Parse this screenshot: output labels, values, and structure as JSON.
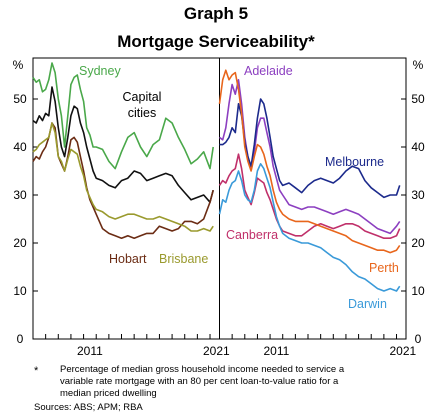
{
  "graph_label": "Graph 5",
  "graph_title": "Mortgage Serviceability*",
  "footnote_mark": "*",
  "footnote": "Percentage of median gross household income needed to service a variable rate mortgage with an 80 per cent loan-to-value ratio for a median priced dwelling",
  "sources": "Sources:   ABS; APM; RBA",
  "chart_data": [
    {
      "type": "line",
      "y_unit": "%",
      "ylim": [
        0,
        60
      ],
      "yticks": [
        0,
        10,
        20,
        30,
        40,
        50
      ],
      "xlim": [
        2007.0,
        2021.75
      ],
      "xticks": [
        "2011",
        "2021"
      ],
      "grid": false,
      "colors": {
        "Sydney": "#4aa84a",
        "Capital cities": "#111111",
        "Hobart": "#6b2c14",
        "Brisbane": "#9a9a2e"
      },
      "series": [
        {
          "name": "Sydney",
          "color": "#4aa84a",
          "x": [
            2007.0,
            2007.25,
            2007.5,
            2007.75,
            2008.0,
            2008.25,
            2008.5,
            2008.75,
            2009.0,
            2009.25,
            2009.5,
            2009.75,
            2010.0,
            2010.25,
            2010.5,
            2010.75,
            2011.0,
            2011.25,
            2011.5,
            2011.75,
            2012.0,
            2012.5,
            2013.0,
            2013.5,
            2014.0,
            2014.5,
            2015.0,
            2015.5,
            2016.0,
            2016.5,
            2017.0,
            2017.5,
            2018.0,
            2018.5,
            2019.0,
            2019.5,
            2020.0,
            2020.5,
            2021.0,
            2021.25
          ],
          "y": [
            54.5,
            53.5,
            54,
            51.5,
            52,
            54,
            57.5,
            55.5,
            50,
            46.5,
            40,
            46.5,
            53,
            54.5,
            55,
            52,
            49.5,
            44,
            42.5,
            40,
            40,
            39.5,
            37,
            35.5,
            39,
            42,
            43,
            40,
            38,
            40.5,
            41.5,
            46,
            45,
            42,
            39.5,
            36.5,
            37.5,
            39,
            35.5,
            40
          ]
        },
        {
          "name": "Capital cities",
          "color": "#111111",
          "x": [
            2007.0,
            2007.25,
            2007.5,
            2007.75,
            2008.0,
            2008.25,
            2008.5,
            2008.75,
            2009.0,
            2009.25,
            2009.5,
            2009.75,
            2010.0,
            2010.25,
            2010.5,
            2010.75,
            2011.0,
            2011.25,
            2011.5,
            2011.75,
            2012.0,
            2012.5,
            2013.0,
            2013.5,
            2014.0,
            2014.5,
            2015.0,
            2015.5,
            2016.0,
            2016.5,
            2017.0,
            2017.5,
            2018.0,
            2018.5,
            2019.0,
            2019.5,
            2020.0,
            2020.5,
            2021.0,
            2021.25
          ],
          "y": [
            45.5,
            45,
            46.5,
            45.5,
            47,
            46.5,
            52.5,
            49.5,
            44,
            40,
            38,
            42,
            46.5,
            48.5,
            48,
            45,
            43,
            40,
            37.5,
            35,
            33.5,
            33,
            32,
            31.5,
            33,
            33.5,
            35,
            34.5,
            33,
            33.5,
            34,
            34.5,
            34,
            32,
            30.5,
            29,
            29.5,
            30,
            28.5,
            31
          ]
        },
        {
          "name": "Hobart",
          "color": "#6b2c14",
          "x": [
            2007.0,
            2007.25,
            2007.5,
            2007.75,
            2008.0,
            2008.25,
            2008.5,
            2008.75,
            2009.0,
            2009.25,
            2009.5,
            2009.75,
            2010.0,
            2010.25,
            2010.5,
            2010.75,
            2011.0,
            2011.25,
            2011.5,
            2011.75,
            2012.0,
            2012.5,
            2013.0,
            2013.5,
            2014.0,
            2014.5,
            2015.0,
            2015.5,
            2016.0,
            2016.5,
            2017.0,
            2017.5,
            2018.0,
            2018.5,
            2019.0,
            2019.5,
            2020.0,
            2020.5,
            2021.0,
            2021.25
          ],
          "y": [
            37,
            38,
            37.5,
            39,
            40,
            42,
            45,
            44,
            38,
            36.5,
            35,
            38,
            41.5,
            42,
            41,
            38,
            35,
            31.5,
            29,
            27.5,
            26,
            23,
            22,
            21.5,
            21,
            21.5,
            21,
            21.5,
            22,
            22,
            23.5,
            23,
            22.5,
            23,
            24.5,
            24.5,
            24,
            25,
            28.5,
            31
          ]
        },
        {
          "name": "Brisbane",
          "color": "#9a9a2e",
          "x": [
            2007.0,
            2007.25,
            2007.5,
            2007.75,
            2008.0,
            2008.25,
            2008.5,
            2008.75,
            2009.0,
            2009.25,
            2009.5,
            2009.75,
            2010.0,
            2010.25,
            2010.5,
            2010.75,
            2011.0,
            2011.25,
            2011.5,
            2011.75,
            2012.0,
            2012.5,
            2013.0,
            2013.5,
            2014.0,
            2014.5,
            2015.0,
            2015.5,
            2016.0,
            2016.5,
            2017.0,
            2017.5,
            2018.0,
            2018.5,
            2019.0,
            2019.5,
            2020.0,
            2020.5,
            2021.0,
            2021.25
          ],
          "y": [
            39,
            39.5,
            40.5,
            41,
            41.5,
            42,
            45,
            43,
            38,
            37,
            35,
            37.5,
            39.5,
            39,
            38.5,
            36,
            34,
            31,
            29.5,
            28,
            27,
            26.5,
            25.5,
            25,
            25.5,
            26,
            26,
            25.5,
            25,
            25,
            25.5,
            25,
            24.5,
            24,
            23.5,
            22.5,
            22.5,
            23,
            22.5,
            23.5
          ]
        }
      ]
    },
    {
      "type": "line",
      "y_unit": "%",
      "ylim": [
        0,
        60
      ],
      "yticks": [
        0,
        10,
        20,
        30,
        40,
        50
      ],
      "xlim": [
        2007.0,
        2021.75
      ],
      "xticks": [
        "2011",
        "2021"
      ],
      "grid": false,
      "colors": {
        "Adelaide": "#8c3fc0",
        "Melbourne": "#1c2a8c",
        "Canberra": "#c0306a",
        "Perth": "#e8661c",
        "Darwin": "#3a9ad9"
      },
      "series": [
        {
          "name": "Adelaide",
          "color": "#8c3fc0",
          "x": [
            2007.0,
            2007.25,
            2007.5,
            2007.75,
            2008.0,
            2008.25,
            2008.5,
            2008.75,
            2009.0,
            2009.25,
            2009.5,
            2009.75,
            2010.0,
            2010.25,
            2010.5,
            2010.75,
            2011.0,
            2011.25,
            2011.5,
            2011.75,
            2012.0,
            2012.5,
            2013.0,
            2013.5,
            2014.0,
            2014.5,
            2015.0,
            2015.5,
            2016.0,
            2016.5,
            2017.0,
            2017.5,
            2018.0,
            2018.5,
            2019.0,
            2019.5,
            2020.0,
            2020.5,
            2021.0,
            2021.25
          ],
          "y": [
            42,
            41.5,
            44,
            49,
            53,
            51,
            54,
            49,
            42,
            38,
            35.5,
            39,
            44,
            46,
            46,
            43,
            40,
            36,
            33.5,
            31,
            30,
            28,
            27.5,
            27,
            27.5,
            27.5,
            27,
            26.5,
            26,
            26.5,
            27,
            26.5,
            26,
            25,
            24,
            23,
            22.5,
            22,
            23.5,
            24.5
          ]
        },
        {
          "name": "Melbourne",
          "color": "#1c2a8c",
          "x": [
            2007.0,
            2007.25,
            2007.5,
            2007.75,
            2008.0,
            2008.25,
            2008.5,
            2008.75,
            2009.0,
            2009.25,
            2009.5,
            2009.75,
            2010.0,
            2010.25,
            2010.5,
            2010.75,
            2011.0,
            2011.25,
            2011.5,
            2011.75,
            2012.0,
            2012.5,
            2013.0,
            2013.5,
            2014.0,
            2014.5,
            2015.0,
            2015.5,
            2016.0,
            2016.5,
            2017.0,
            2017.5,
            2018.0,
            2018.5,
            2019.0,
            2019.5,
            2020.0,
            2020.5,
            2021.0,
            2021.25
          ],
          "y": [
            40.5,
            40.5,
            41,
            42,
            44,
            43,
            49,
            46.5,
            41,
            38,
            36,
            40.5,
            46,
            50,
            49,
            46,
            42,
            38,
            35.5,
            33,
            32,
            32.5,
            31.5,
            30.5,
            32,
            33,
            33.5,
            33,
            32.5,
            33.5,
            35,
            36,
            35.5,
            33,
            31.5,
            30.5,
            29.5,
            30,
            30,
            32
          ]
        },
        {
          "name": "Canberra",
          "color": "#c0306a",
          "x": [
            2007.0,
            2007.25,
            2007.5,
            2007.75,
            2008.0,
            2008.25,
            2008.5,
            2008.75,
            2009.0,
            2009.25,
            2009.5,
            2009.75,
            2010.0,
            2010.25,
            2010.5,
            2010.75,
            2011.0,
            2011.25,
            2011.5,
            2011.75,
            2012.0,
            2012.5,
            2013.0,
            2013.5,
            2014.0,
            2014.5,
            2015.0,
            2015.5,
            2016.0,
            2016.5,
            2017.0,
            2017.5,
            2018.0,
            2018.5,
            2019.0,
            2019.5,
            2020.0,
            2020.5,
            2021.0,
            2021.25
          ],
          "y": [
            32,
            33,
            32.5,
            34,
            35,
            35.5,
            38.5,
            35.5,
            31,
            29.5,
            28,
            30.5,
            33.5,
            33,
            32.5,
            30.5,
            29,
            27,
            25,
            23.5,
            22.5,
            22,
            21.5,
            21.5,
            22.5,
            23.5,
            24,
            23.5,
            23,
            23.5,
            24,
            24,
            23.5,
            22.5,
            22,
            21.5,
            21,
            21,
            21.5,
            23
          ]
        },
        {
          "name": "Perth",
          "color": "#e8661c",
          "x": [
            2007.0,
            2007.25,
            2007.5,
            2007.75,
            2008.0,
            2008.25,
            2008.5,
            2008.75,
            2009.0,
            2009.25,
            2009.5,
            2009.75,
            2010.0,
            2010.25,
            2010.5,
            2010.75,
            2011.0,
            2011.25,
            2011.5,
            2011.75,
            2012.0,
            2012.5,
            2013.0,
            2013.5,
            2014.0,
            2014.5,
            2015.0,
            2015.5,
            2016.0,
            2016.5,
            2017.0,
            2017.5,
            2018.0,
            2018.5,
            2019.0,
            2019.5,
            2020.0,
            2020.5,
            2021.0,
            2021.25
          ],
          "y": [
            49,
            54,
            56,
            54,
            55,
            55.5,
            52,
            47,
            40,
            37,
            35,
            38,
            40.5,
            40,
            38.5,
            36,
            34,
            31,
            28.5,
            27,
            26,
            25,
            24.5,
            24.5,
            24.5,
            24,
            23.5,
            23,
            22.5,
            22,
            21.5,
            20.5,
            20,
            19.5,
            19,
            18.5,
            18.5,
            18,
            18.5,
            19.5
          ]
        },
        {
          "name": "Darwin",
          "color": "#3a9ad9",
          "x": [
            2007.0,
            2007.25,
            2007.5,
            2007.75,
            2008.0,
            2008.25,
            2008.5,
            2008.75,
            2009.0,
            2009.25,
            2009.5,
            2009.75,
            2010.0,
            2010.25,
            2010.5,
            2010.75,
            2011.0,
            2011.25,
            2011.5,
            2011.75,
            2012.0,
            2012.5,
            2013.0,
            2013.5,
            2014.0,
            2014.5,
            2015.0,
            2015.5,
            2016.0,
            2016.5,
            2017.0,
            2017.5,
            2018.0,
            2018.5,
            2019.0,
            2019.5,
            2020.0,
            2020.5,
            2021.0,
            2021.25
          ],
          "y": [
            26,
            29,
            28.5,
            31,
            32.5,
            33,
            35,
            33,
            30,
            29,
            28.5,
            31,
            35,
            36.5,
            35.5,
            33.5,
            31.5,
            28.5,
            25.5,
            23.5,
            22,
            21,
            20.5,
            20,
            20,
            19.5,
            19,
            18,
            17,
            16.5,
            15.5,
            14,
            13,
            12.5,
            11.5,
            10.5,
            10,
            10.5,
            10,
            11
          ]
        }
      ]
    }
  ]
}
